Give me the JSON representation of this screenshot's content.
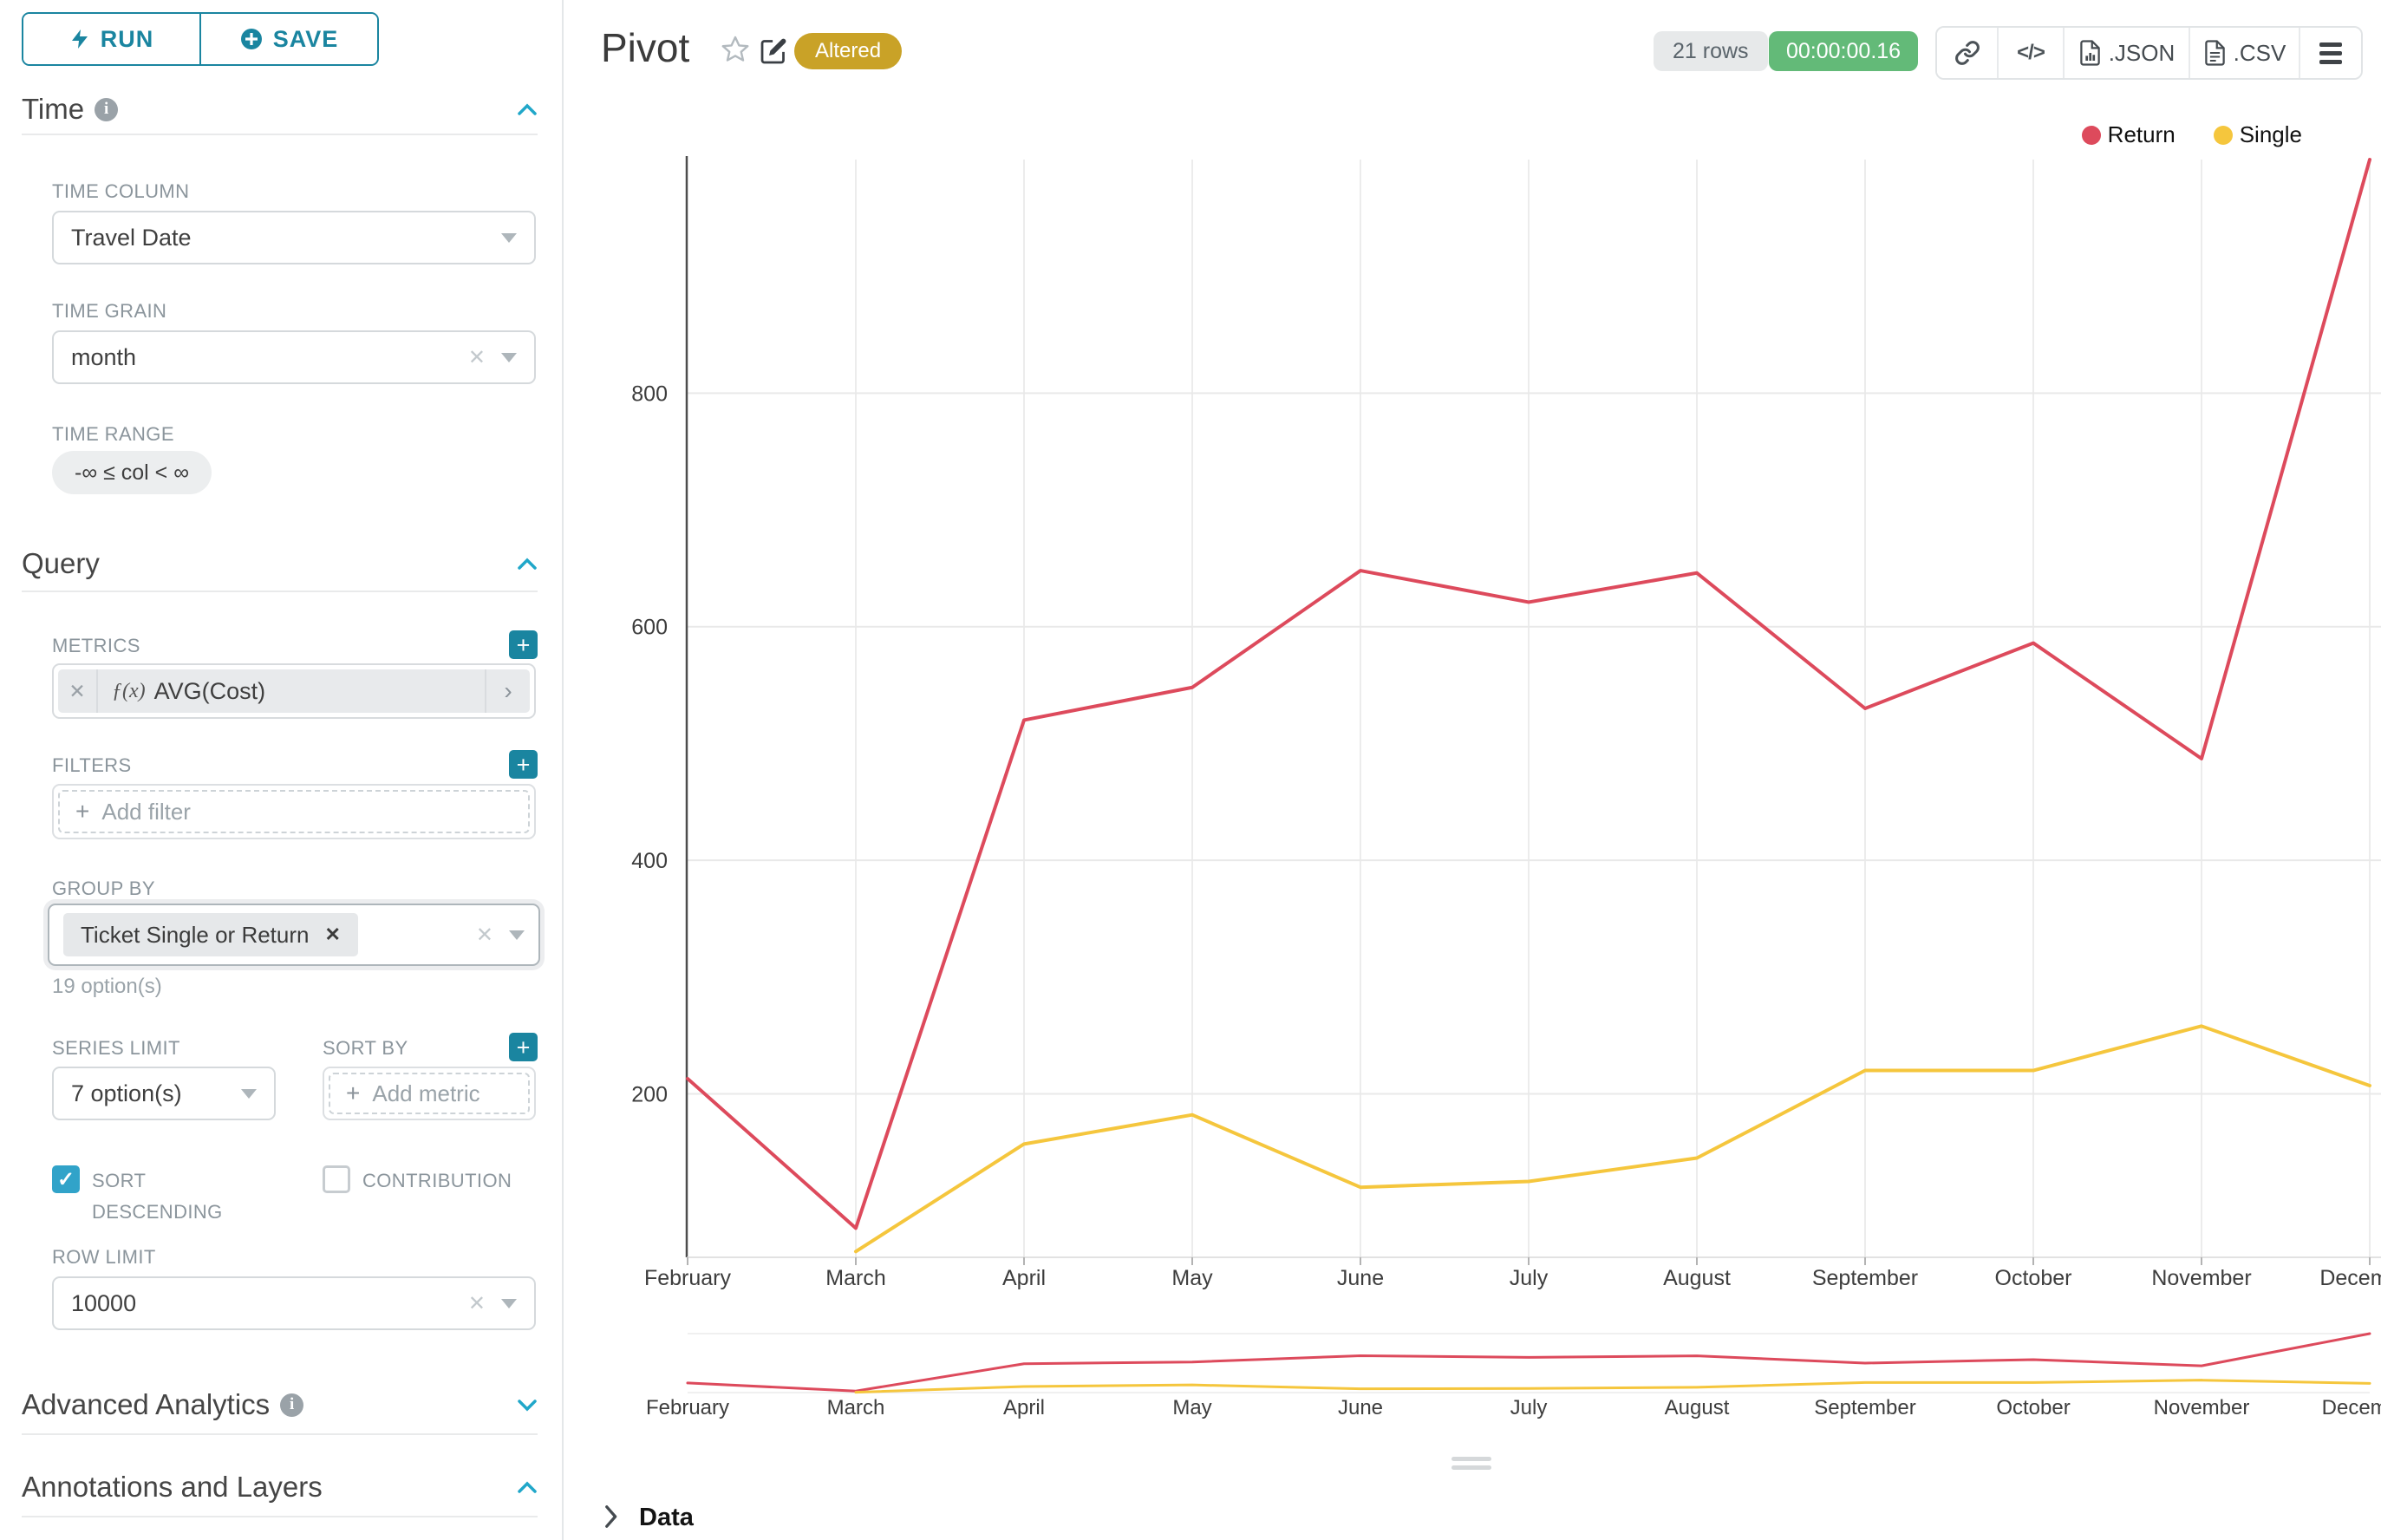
{
  "toolbar": {
    "run_label": "RUN",
    "save_label": "SAVE"
  },
  "sidebar": {
    "time": {
      "heading": "Time",
      "time_column_label": "TIME COLUMN",
      "time_column_value": "Travel Date",
      "time_grain_label": "TIME GRAIN",
      "time_grain_value": "month",
      "time_range_label": "TIME RANGE",
      "time_range_value": "-∞ ≤ col < ∞"
    },
    "query": {
      "heading": "Query",
      "metrics_label": "METRICS",
      "metric_fx": "ƒ(x)",
      "metric_value": "AVG(Cost)",
      "filters_label": "FILTERS",
      "add_filter_placeholder": "Add filter",
      "group_by_label": "GROUP BY",
      "group_by_chip": "Ticket Single or Return",
      "options_hint": "19 option(s)",
      "series_limit_label": "SERIES LIMIT",
      "series_limit_value": "7 option(s)",
      "sort_by_label": "SORT BY",
      "add_metric_placeholder": "Add metric",
      "sort_descending_label": "SORT DESCENDING",
      "contribution_label": "CONTRIBUTION",
      "row_limit_label": "ROW LIMIT",
      "row_limit_value": "10000"
    },
    "advanced": {
      "heading": "Advanced Analytics"
    },
    "annotations": {
      "heading": "Annotations and Layers"
    }
  },
  "header": {
    "title": "Pivot",
    "altered_badge": "Altered",
    "rows_badge": "21 rows",
    "timer_badge": "00:00:00.16",
    "json_label": ".JSON",
    "csv_label": ".CSV"
  },
  "footer": {
    "data_label": "Data"
  },
  "colors": {
    "accent": "#1a85a0",
    "accent_light": "#20a7c9",
    "altered": "#c9a227",
    "timer_green": "#63ba78",
    "return_red": "#dd4a5c",
    "single_yellow": "#f5c63d"
  },
  "chart_data": {
    "type": "line",
    "title": "Pivot",
    "categories": [
      "February",
      "March",
      "April",
      "May",
      "June",
      "July",
      "August",
      "September",
      "October",
      "November",
      "December"
    ],
    "series": [
      {
        "name": "Return",
        "color": "#dd4a5c",
        "values": [
          213,
          85,
          520,
          548,
          648,
          621,
          646,
          530,
          586,
          487,
          1000
        ]
      },
      {
        "name": "Single",
        "color": "#f5c63d",
        "values": [
          null,
          65,
          157,
          182,
          120,
          125,
          145,
          220,
          220,
          258,
          207
        ]
      }
    ],
    "xlabel": "",
    "ylabel": "",
    "y_ticks": [
      200,
      400,
      600,
      800
    ],
    "ylim": [
      60,
      1000
    ],
    "grid": true,
    "legend_position": "top-right",
    "has_mini_preview": true
  }
}
